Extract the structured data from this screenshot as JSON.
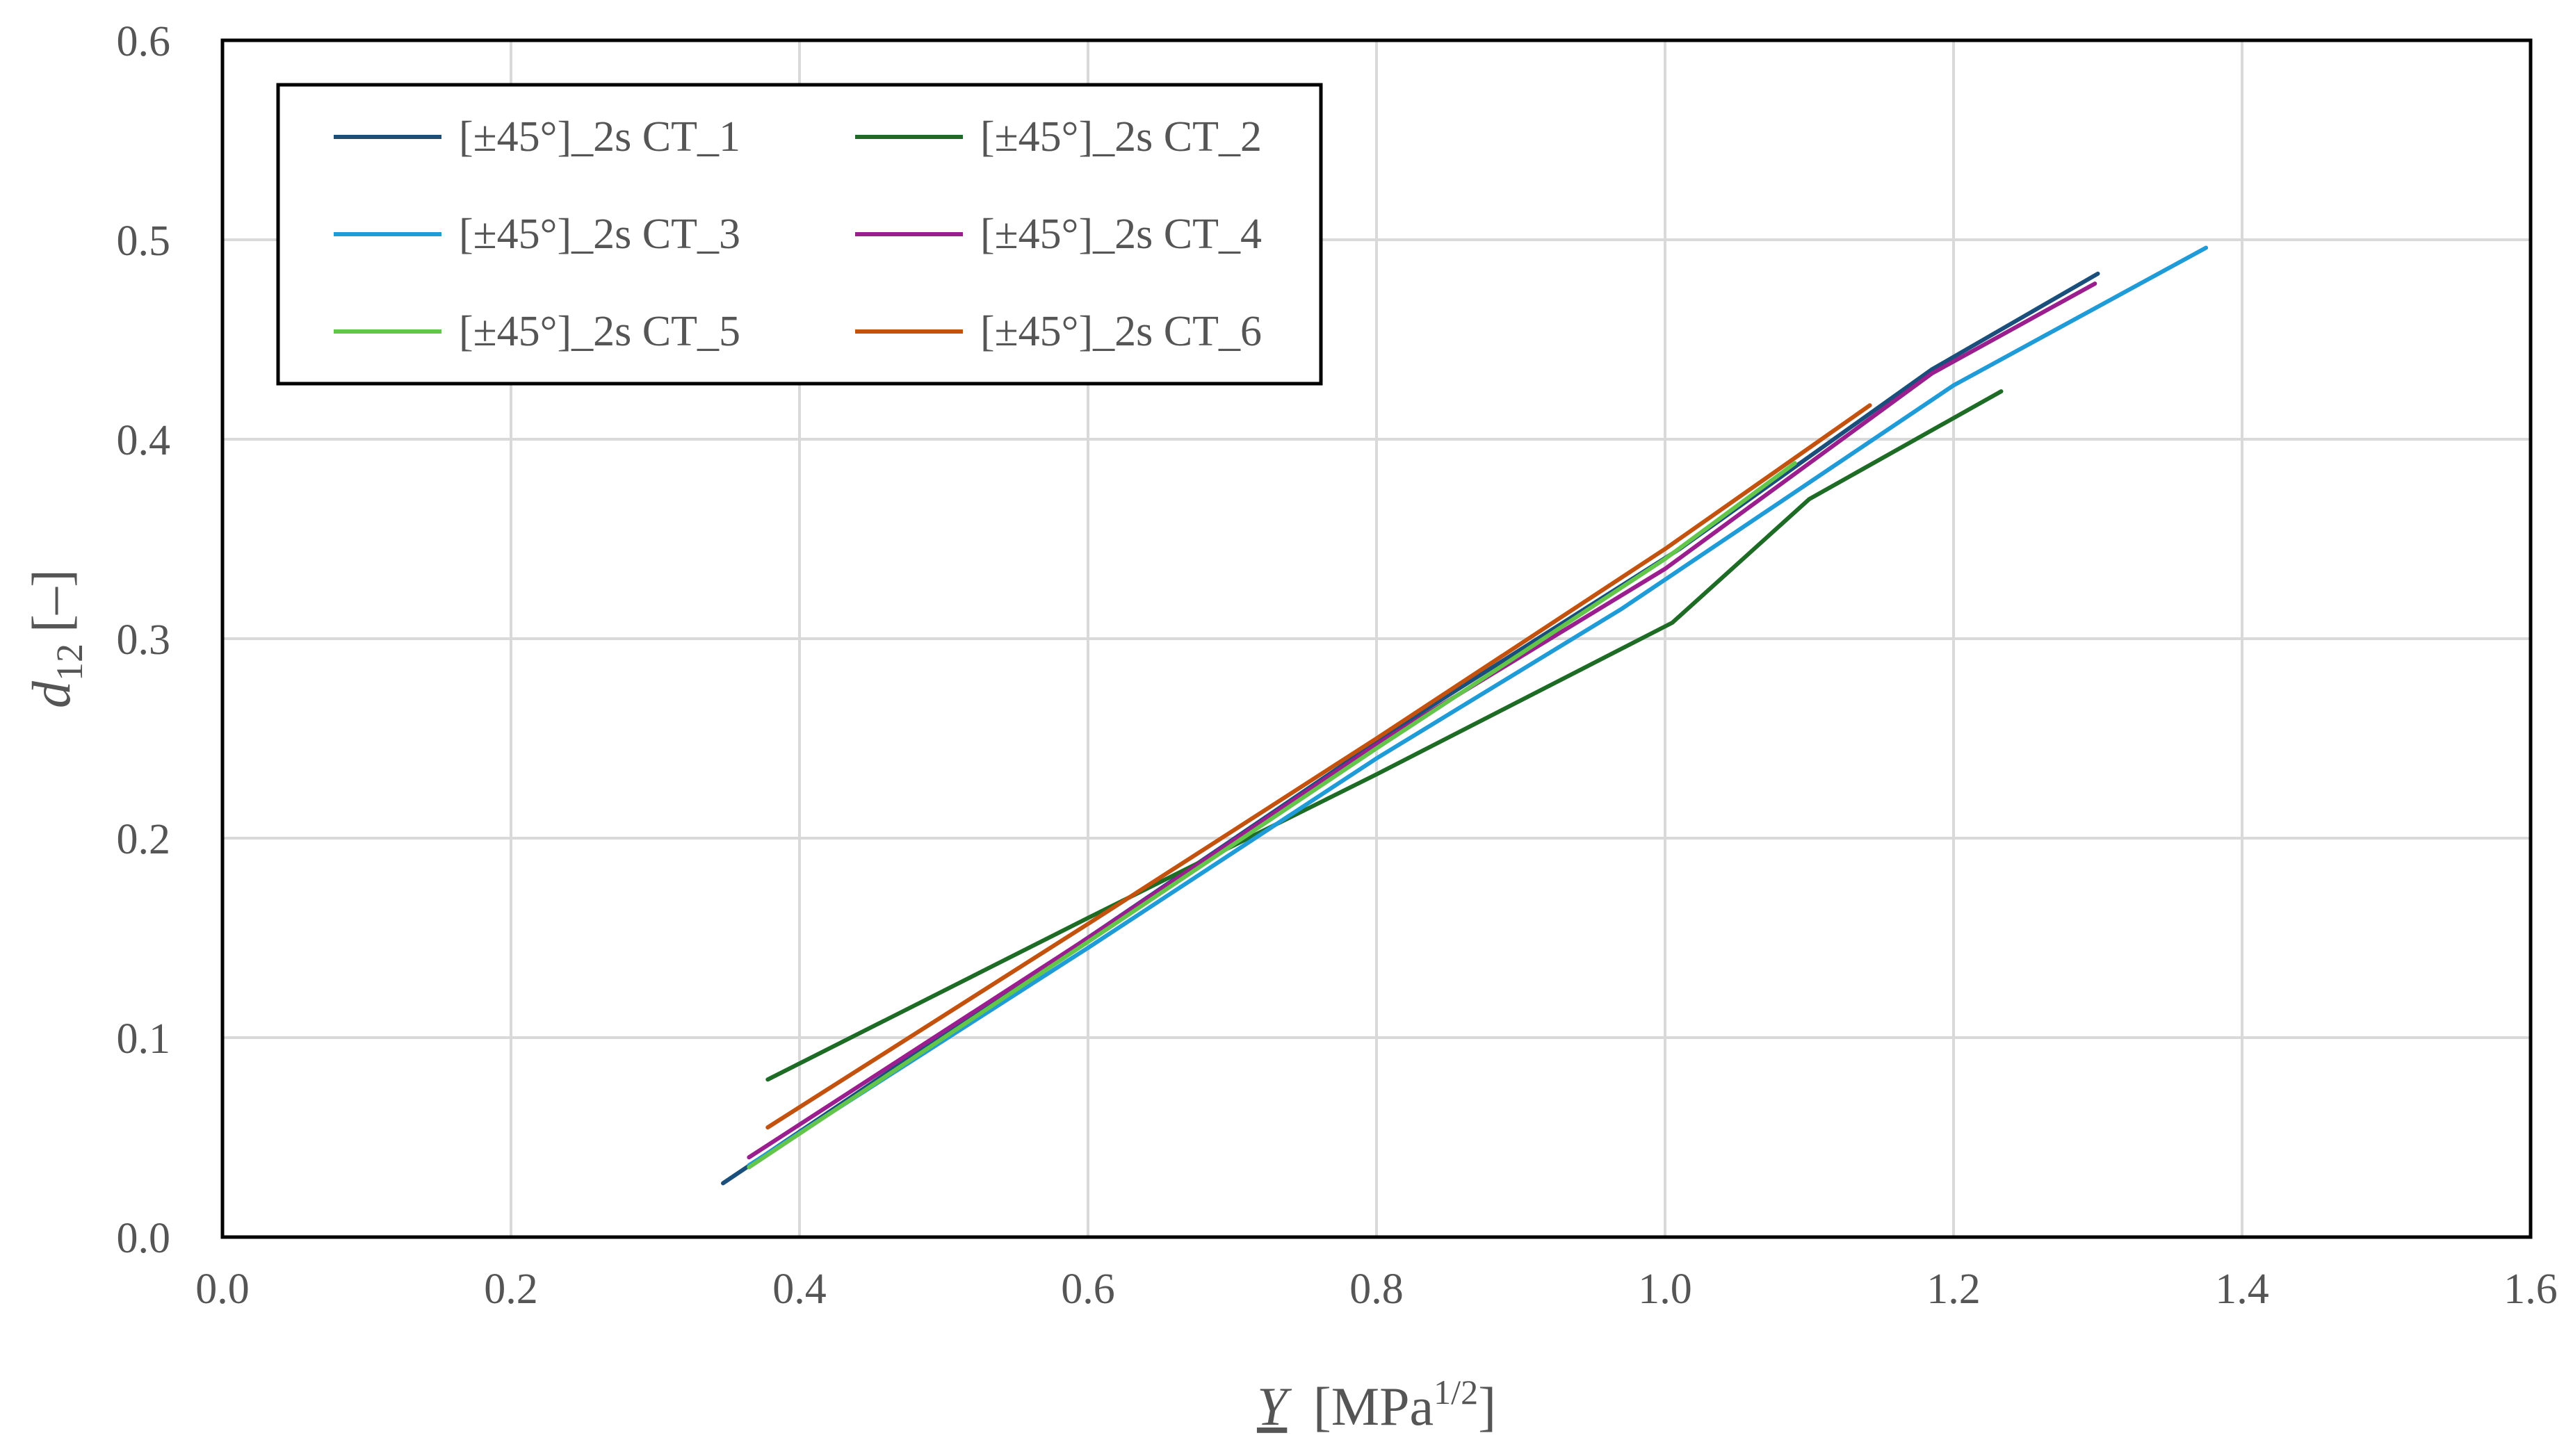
{
  "chart_data": {
    "type": "line",
    "title": "",
    "xlabel": "Y",
    "xlabel_unit": "[MPa",
    "xlabel_exponent": "1/2",
    "xlabel_close": "]",
    "ylabel": "d",
    "ylabel_subscript": "12",
    "ylabel_unit": "[–]",
    "xlim": [
      0,
      1.6
    ],
    "ylim": [
      0,
      0.6
    ],
    "xticks": [
      0.0,
      0.2,
      0.4,
      0.6,
      0.8,
      1.0,
      1.2,
      1.4,
      1.6
    ],
    "xtick_labels": [
      "0.0",
      "0.2",
      "0.4",
      "0.6",
      "0.8",
      "1.0",
      "1.2",
      "1.4",
      "1.6"
    ],
    "yticks": [
      0.0,
      0.1,
      0.2,
      0.3,
      0.4,
      0.5,
      0.6
    ],
    "ytick_labels": [
      "0.0",
      "0.1",
      "0.2",
      "0.3",
      "0.4",
      "0.5",
      "0.6"
    ],
    "grid": true,
    "legend_position": "top-left",
    "series": [
      {
        "name": "[±45°]_2s CT_1",
        "color": "#1a4f7c",
        "x": [
          0.347,
          0.61,
          0.82,
          1.01,
          1.185,
          1.3
        ],
        "y": [
          0.027,
          0.155,
          0.258,
          0.345,
          0.435,
          0.483
        ]
      },
      {
        "name": "[±45°]_2s CT_2",
        "color": "#1e6b26",
        "x": [
          0.378,
          0.6,
          0.8,
          1.005,
          1.1,
          1.233
        ],
        "y": [
          0.079,
          0.16,
          0.232,
          0.308,
          0.37,
          0.424
        ]
      },
      {
        "name": "[±45°]_2s CT_3",
        "color": "#1f9bd7",
        "x": [
          0.365,
          0.6,
          0.8,
          0.97,
          1.2,
          1.375
        ],
        "y": [
          0.036,
          0.145,
          0.24,
          0.315,
          0.427,
          0.496
        ]
      },
      {
        "name": "[±45°]_2s CT_4",
        "color": "#9b1e8e",
        "x": [
          0.365,
          0.6,
          0.8,
          1.0,
          1.185,
          1.298
        ],
        "y": [
          0.04,
          0.15,
          0.247,
          0.335,
          0.433,
          0.478
        ]
      },
      {
        "name": "[±45°]_2s CT_5",
        "color": "#63c64a",
        "x": [
          0.365,
          0.6,
          0.8,
          1.0,
          1.09
        ],
        "y": [
          0.035,
          0.148,
          0.245,
          0.34,
          0.388
        ]
      },
      {
        "name": "[±45°]_2s CT_6",
        "color": "#c4520f",
        "x": [
          0.378,
          0.6,
          0.8,
          1.0,
          1.142
        ],
        "y": [
          0.055,
          0.157,
          0.25,
          0.345,
          0.417
        ]
      }
    ]
  }
}
